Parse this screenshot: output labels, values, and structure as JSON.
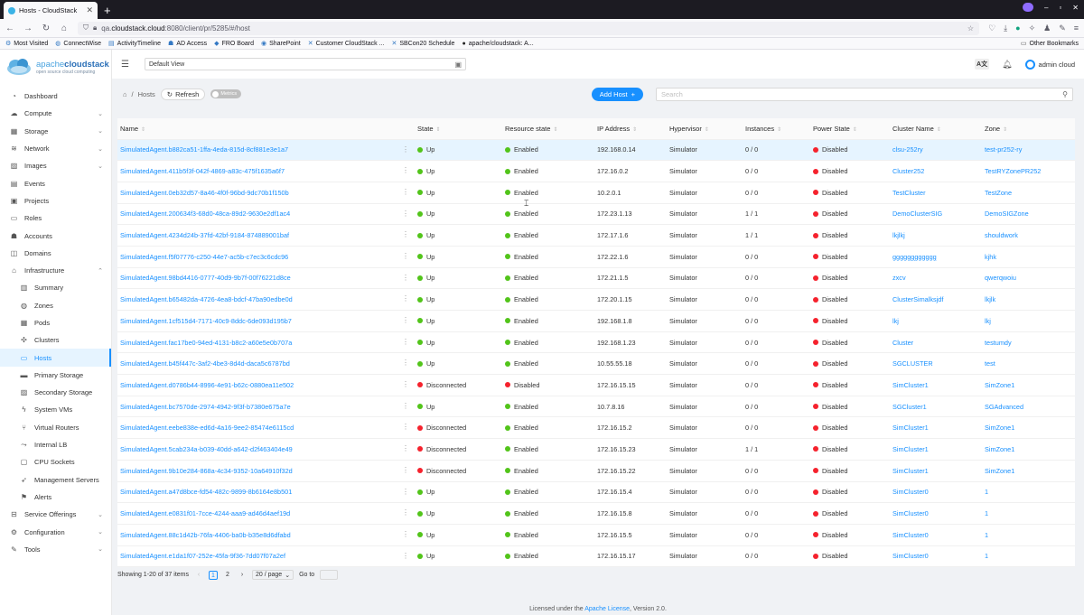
{
  "browser": {
    "tab_title": "Hosts - CloudStack",
    "new_tab": "+",
    "url_prefix": "qa.",
    "url_domain": "cloudstack.cloud",
    "url_rest": ":8080/client/pr/5285/#/host",
    "bookmarks": [
      "Most Visited",
      "ConnectWise",
      "ActivityTimeline",
      "AD Access",
      "FRO Board",
      "SharePoint",
      "Customer CloudStack ...",
      "SBCon20 Schedule",
      "apache/cloudstack: A..."
    ],
    "other_bookmarks": "Other Bookmarks"
  },
  "logo": {
    "brand_a": "apache",
    "brand_b": "cloudstack",
    "tagline": "open source cloud computing"
  },
  "sidebar": {
    "items": [
      {
        "label": "Dashboard",
        "icon": "dashboard-icon"
      },
      {
        "label": "Compute",
        "icon": "cloud-icon",
        "expand": true
      },
      {
        "label": "Storage",
        "icon": "database-icon",
        "expand": true
      },
      {
        "label": "Network",
        "icon": "wifi-icon",
        "expand": true
      },
      {
        "label": "Images",
        "icon": "picture-icon",
        "expand": true
      },
      {
        "label": "Events",
        "icon": "schedule-icon"
      },
      {
        "label": "Projects",
        "icon": "project-icon"
      },
      {
        "label": "Roles",
        "icon": "idcard-icon"
      },
      {
        "label": "Accounts",
        "icon": "team-icon"
      },
      {
        "label": "Domains",
        "icon": "block-icon"
      },
      {
        "label": "Infrastructure",
        "icon": "bank-icon",
        "expand": true,
        "open": true
      },
      {
        "label": "Summary",
        "icon": "read-icon",
        "sub": true
      },
      {
        "label": "Zones",
        "icon": "global-icon",
        "sub": true
      },
      {
        "label": "Pods",
        "icon": "appstore-icon",
        "sub": true
      },
      {
        "label": "Clusters",
        "icon": "cluster-icon",
        "sub": true
      },
      {
        "label": "Hosts",
        "icon": "desktop-icon",
        "sub": true,
        "active": true
      },
      {
        "label": "Primary Storage",
        "icon": "hdd-icon",
        "sub": true
      },
      {
        "label": "Secondary Storage",
        "icon": "picture-icon",
        "sub": true
      },
      {
        "label": "System VMs",
        "icon": "thunderbolt-icon",
        "sub": true
      },
      {
        "label": "Virtual Routers",
        "icon": "fork-icon",
        "sub": true
      },
      {
        "label": "Internal LB",
        "icon": "share-icon",
        "sub": true
      },
      {
        "label": "CPU Sockets",
        "icon": "inbox-icon",
        "sub": true
      },
      {
        "label": "Management Servers",
        "icon": "rocket-icon",
        "sub": true
      },
      {
        "label": "Alerts",
        "icon": "flag-icon",
        "sub": true
      },
      {
        "label": "Service Offerings",
        "icon": "shopping-icon",
        "expand": true
      },
      {
        "label": "Configuration",
        "icon": "setting-icon",
        "expand": true
      },
      {
        "label": "Tools",
        "icon": "tool-icon",
        "expand": true
      }
    ]
  },
  "header": {
    "view": "Default View",
    "user": "admin cloud"
  },
  "toolbar": {
    "crumb": "Hosts",
    "refresh": "Refresh",
    "metrics": "Metrics",
    "add_host": "Add Host",
    "search_placeholder": "Search"
  },
  "table": {
    "columns": [
      "Name",
      "State",
      "Resource state",
      "IP Address",
      "Hypervisor",
      "Instances",
      "Power State",
      "Cluster Name",
      "Zone"
    ],
    "rows": [
      [
        "SimulatedAgent.b882ca51-1ffa-4eda-815d-8cf881e3e1a7",
        "Up",
        "Enabled",
        "192.168.0.14",
        "Simulator",
        "0 / 0",
        "Disabled",
        "clsu-252ry",
        "test-pr252-ry"
      ],
      [
        "SimulatedAgent.411b5f3f-042f-4869-a83c-475f1635a6f7",
        "Up",
        "Enabled",
        "172.16.0.2",
        "Simulator",
        "0 / 0",
        "Disabled",
        "Cluster252",
        "TestRYZonePR252"
      ],
      [
        "SimulatedAgent.0eb32d57-8a46-4f0f-96bd-9dc70b1f150b",
        "Up",
        "Enabled",
        "10.2.0.1",
        "Simulator",
        "0 / 0",
        "Disabled",
        "TestCluster",
        "TestZone"
      ],
      [
        "SimulatedAgent.200634f3-68d0-48ca-89d2-9630e2df1ac4",
        "Up",
        "Enabled",
        "172.23.1.13",
        "Simulator",
        "1 / 1",
        "Disabled",
        "DemoClusterSIG",
        "DemoSIGZone"
      ],
      [
        "SimulatedAgent.4234d24b-37fd-42bf-9184-874889001baf",
        "Up",
        "Enabled",
        "172.17.1.6",
        "Simulator",
        "1 / 1",
        "Disabled",
        "lkjlkj",
        "shouldwork"
      ],
      [
        "SimulatedAgent.f5f07776-c250-44e7-ac5b-c7ec3c6cdc96",
        "Up",
        "Enabled",
        "172.22.1.6",
        "Simulator",
        "0 / 0",
        "Disabled",
        "gggggggggggg",
        "kjhk"
      ],
      [
        "SimulatedAgent.98bd4416-0777-40d9-9b7f-00f76221d8ce",
        "Up",
        "Enabled",
        "172.21.1.5",
        "Simulator",
        "0 / 0",
        "Disabled",
        "zxcv",
        "qwerqwoiu"
      ],
      [
        "SimulatedAgent.b65482da-4726-4ea8-bdcf-47ba90edbe0d",
        "Up",
        "Enabled",
        "172.20.1.15",
        "Simulator",
        "0 / 0",
        "Disabled",
        "ClusterSimalksjdf",
        "lkjlk"
      ],
      [
        "SimulatedAgent.1cf515d4-7171-40c9-8ddc-6de093d195b7",
        "Up",
        "Enabled",
        "192.168.1.8",
        "Simulator",
        "0 / 0",
        "Disabled",
        "lkj",
        "lkj"
      ],
      [
        "SimulatedAgent.fac17be0-94ed-4131-b8c2-a60e5e0b707a",
        "Up",
        "Enabled",
        "192.168.1.23",
        "Simulator",
        "0 / 0",
        "Disabled",
        "Cluster",
        "testumdy"
      ],
      [
        "SimulatedAgent.b45f447c-3af2-4be3-8d4d-daca5c6787bd",
        "Up",
        "Enabled",
        "10.55.55.18",
        "Simulator",
        "0 / 0",
        "Disabled",
        "SGCLUSTER",
        "test"
      ],
      [
        "SimulatedAgent.d0786b44-8996-4e91-b62c-0880ea11e502",
        "Disconnected",
        "Disabled",
        "172.16.15.15",
        "Simulator",
        "0 / 0",
        "Disabled",
        "SimCluster1",
        "SimZone1"
      ],
      [
        "SimulatedAgent.bc7570de-2974-4942-9f3f-b7380e675a7e",
        "Up",
        "Enabled",
        "10.7.8.16",
        "Simulator",
        "0 / 0",
        "Disabled",
        "SGCluster1",
        "SGAdvanced"
      ],
      [
        "SimulatedAgent.eebe838e-ed6d-4a16-9ee2-85474e6115cd",
        "Disconnected",
        "Enabled",
        "172.16.15.2",
        "Simulator",
        "0 / 0",
        "Disabled",
        "SimCluster1",
        "SimZone1"
      ],
      [
        "SimulatedAgent.5cab234a-b039-40dd-a642-d2f463404e49",
        "Disconnected",
        "Enabled",
        "172.16.15.23",
        "Simulator",
        "1 / 1",
        "Disabled",
        "SimCluster1",
        "SimZone1"
      ],
      [
        "SimulatedAgent.9b10e284-868a-4c34-9352-10a64910f32d",
        "Disconnected",
        "Enabled",
        "172.16.15.22",
        "Simulator",
        "0 / 0",
        "Disabled",
        "SimCluster1",
        "SimZone1"
      ],
      [
        "SimulatedAgent.a47d8bce-fd54-482c-9899-8b6164e8b501",
        "Up",
        "Enabled",
        "172.16.15.4",
        "Simulator",
        "0 / 0",
        "Disabled",
        "SimCluster0",
        "1"
      ],
      [
        "SimulatedAgent.e0831f01-7cce-4244-aaa9-ad46d4aef19d",
        "Up",
        "Enabled",
        "172.16.15.8",
        "Simulator",
        "0 / 0",
        "Disabled",
        "SimCluster0",
        "1"
      ],
      [
        "SimulatedAgent.88c1d42b-76fa-4406-ba0b-b35e8d6dfabd",
        "Up",
        "Enabled",
        "172.16.15.5",
        "Simulator",
        "0 / 0",
        "Disabled",
        "SimCluster0",
        "1"
      ],
      [
        "SimulatedAgent.e1da1f07-252e-45fa-9f36-7dd07f07a2ef",
        "Up",
        "Enabled",
        "172.16.15.17",
        "Simulator",
        "0 / 0",
        "Disabled",
        "SimCluster0",
        "1"
      ]
    ]
  },
  "pagination": {
    "summary": "Showing 1-20 of 37 items",
    "pages": [
      "1",
      "2"
    ],
    "page_size": "20 / page",
    "goto": "Go to"
  },
  "footer": {
    "prefix": "Licensed under the",
    "link": "Apache License",
    "suffix": ", Version 2.0."
  },
  "colors": {
    "accent": "#1890ff",
    "ok": "#52c41a",
    "bad": "#f5222d"
  }
}
